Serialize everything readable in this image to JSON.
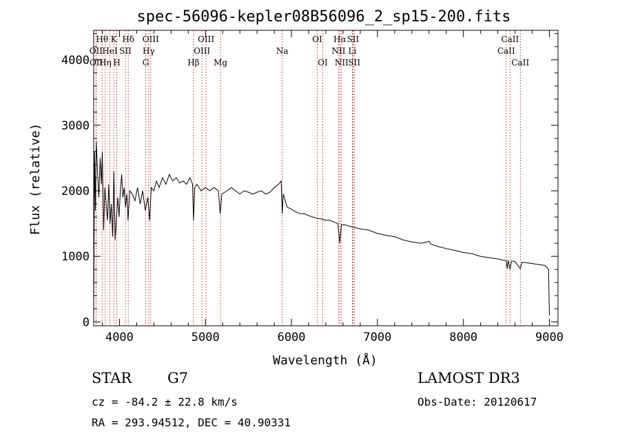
{
  "chart_data": {
    "type": "line",
    "title": "spec-56096-kepler08B56096_2_sp15-200.fits",
    "xlabel": "Wavelength (Å)",
    "ylabel": "Flux (relative)",
    "xlim": [
      3700,
      9100
    ],
    "ylim": [
      -60,
      4450
    ],
    "x_ticks": [
      4000,
      5000,
      6000,
      7000,
      8000,
      9000
    ],
    "x_tick_labels": [
      "4000",
      "5000",
      "6000",
      "7000",
      "8000",
      "9000"
    ],
    "y_ticks": [
      0,
      1000,
      2000,
      3000,
      4000
    ],
    "y_tick_labels": [
      "0",
      "1000",
      "2000",
      "3000",
      "4000"
    ],
    "grid": false,
    "series": [
      {
        "name": "spectrum",
        "points": [
          [
            3700,
            80
          ],
          [
            3710,
            2600
          ],
          [
            3720,
            1700
          ],
          [
            3730,
            2750
          ],
          [
            3745,
            2300
          ],
          [
            3760,
            1900
          ],
          [
            3775,
            2500
          ],
          [
            3790,
            2100
          ],
          [
            3800,
            2600
          ],
          [
            3815,
            1400
          ],
          [
            3830,
            2050
          ],
          [
            3845,
            1800
          ],
          [
            3860,
            1550
          ],
          [
            3875,
            2100
          ],
          [
            3890,
            1500
          ],
          [
            3905,
            1800
          ],
          [
            3920,
            1300
          ],
          [
            3935,
            2300
          ],
          [
            3950,
            1250
          ],
          [
            3965,
            1600
          ],
          [
            3980,
            1900
          ],
          [
            3995,
            1600
          ],
          [
            4010,
            2000
          ],
          [
            4025,
            2250
          ],
          [
            4040,
            1900
          ],
          [
            4055,
            2050
          ],
          [
            4070,
            1750
          ],
          [
            4085,
            1950
          ],
          [
            4100,
            1550
          ],
          [
            4120,
            2000
          ],
          [
            4150,
            1950
          ],
          [
            4180,
            1850
          ],
          [
            4210,
            2050
          ],
          [
            4240,
            1800
          ],
          [
            4270,
            2000
          ],
          [
            4300,
            1700
          ],
          [
            4330,
            1900
          ],
          [
            4350,
            1550
          ],
          [
            4370,
            2050
          ],
          [
            4400,
            2000
          ],
          [
            4430,
            2150
          ],
          [
            4460,
            2050
          ],
          [
            4500,
            2200
          ],
          [
            4540,
            2100
          ],
          [
            4580,
            2250
          ],
          [
            4620,
            2150
          ],
          [
            4660,
            2200
          ],
          [
            4700,
            2120
          ],
          [
            4740,
            2150
          ],
          [
            4780,
            2100
          ],
          [
            4820,
            2200
          ],
          [
            4850,
            2100
          ],
          [
            4861,
            1550
          ],
          [
            4875,
            2050
          ],
          [
            4900,
            2100
          ],
          [
            4950,
            2000
          ],
          [
            5000,
            2050
          ],
          [
            5050,
            2000
          ],
          [
            5100,
            2050
          ],
          [
            5150,
            2000
          ],
          [
            5172,
            1650
          ],
          [
            5190,
            1950
          ],
          [
            5250,
            2000
          ],
          [
            5300,
            2050
          ],
          [
            5350,
            2000
          ],
          [
            5400,
            1950
          ],
          [
            5450,
            2000
          ],
          [
            5500,
            1980
          ],
          [
            5550,
            1950
          ],
          [
            5600,
            1980
          ],
          [
            5650,
            2000
          ],
          [
            5700,
            1950
          ],
          [
            5750,
            1980
          ],
          [
            5800,
            2050
          ],
          [
            5850,
            2100
          ],
          [
            5880,
            2150
          ],
          [
            5893,
            1650
          ],
          [
            5905,
            1950
          ],
          [
            5950,
            1750
          ],
          [
            6000,
            1720
          ],
          [
            6050,
            1680
          ],
          [
            6100,
            1650
          ],
          [
            6150,
            1650
          ],
          [
            6200,
            1620
          ],
          [
            6250,
            1600
          ],
          [
            6300,
            1580
          ],
          [
            6350,
            1570
          ],
          [
            6400,
            1550
          ],
          [
            6450,
            1550
          ],
          [
            6500,
            1520
          ],
          [
            6540,
            1500
          ],
          [
            6563,
            1200
          ],
          [
            6580,
            1480
          ],
          [
            6620,
            1480
          ],
          [
            6700,
            1450
          ],
          [
            6800,
            1420
          ],
          [
            6900,
            1400
          ],
          [
            7000,
            1350
          ],
          [
            7100,
            1320
          ],
          [
            7200,
            1300
          ],
          [
            7300,
            1250
          ],
          [
            7400,
            1220
          ],
          [
            7500,
            1200
          ],
          [
            7550,
            1210
          ],
          [
            7600,
            1230
          ],
          [
            7620,
            1190
          ],
          [
            7700,
            1150
          ],
          [
            7800,
            1120
          ],
          [
            7900,
            1090
          ],
          [
            8000,
            1060
          ],
          [
            8100,
            1040
          ],
          [
            8200,
            1000
          ],
          [
            8300,
            980
          ],
          [
            8400,
            960
          ],
          [
            8498,
            930
          ],
          [
            8510,
            810
          ],
          [
            8520,
            940
          ],
          [
            8542,
            800
          ],
          [
            8560,
            930
          ],
          [
            8600,
            920
          ],
          [
            8662,
            810
          ],
          [
            8680,
            910
          ],
          [
            8750,
            900
          ],
          [
            8800,
            890
          ],
          [
            8850,
            880
          ],
          [
            8900,
            870
          ],
          [
            8950,
            860
          ],
          [
            8990,
            800
          ],
          [
            9000,
            100
          ]
        ]
      }
    ],
    "lines": [
      {
        "name": "Hθ",
        "wavelength": 3798,
        "row": 0
      },
      {
        "name": "OII",
        "wavelength": 3727,
        "row": 1
      },
      {
        "name": "OII",
        "wavelength": 3729,
        "row": 2
      },
      {
        "name": "Hη",
        "wavelength": 3835,
        "row": 2
      },
      {
        "name": "K",
        "wavelength": 3934,
        "row": 0
      },
      {
        "name": "HeI",
        "wavelength": 3889,
        "row": 1
      },
      {
        "name": "H",
        "wavelength": 3969,
        "row": 2
      },
      {
        "name": "SII",
        "wavelength": 4069,
        "row": 1
      },
      {
        "name": "Hδ",
        "wavelength": 4102,
        "row": 0
      },
      {
        "name": "OIII",
        "wavelength": 4363,
        "row": 0
      },
      {
        "name": "Hγ",
        "wavelength": 4340,
        "row": 1
      },
      {
        "name": "G",
        "wavelength": 4305,
        "row": 2
      },
      {
        "name": "Hβ",
        "wavelength": 4861,
        "row": 2
      },
      {
        "name": "OIII",
        "wavelength": 4959,
        "row": 1
      },
      {
        "name": "OIII",
        "wavelength": 5007,
        "row": 0
      },
      {
        "name": "Mg",
        "wavelength": 5175,
        "row": 2
      },
      {
        "name": "Na",
        "wavelength": 5893,
        "row": 1
      },
      {
        "name": "OI",
        "wavelength": 6300,
        "row": 0
      },
      {
        "name": "OI",
        "wavelength": 6364,
        "row": 2
      },
      {
        "name": "Hα",
        "wavelength": 6563,
        "row": 0
      },
      {
        "name": "NII",
        "wavelength": 6548,
        "row": 1
      },
      {
        "name": "NII",
        "wavelength": 6583,
        "row": 2
      },
      {
        "name": "SII",
        "wavelength": 6716,
        "row": 0
      },
      {
        "name": "Li",
        "wavelength": 6708,
        "row": 1
      },
      {
        "name": "SII",
        "wavelength": 6731,
        "row": 2
      },
      {
        "name": "CaII",
        "wavelength": 8542,
        "row": 0
      },
      {
        "name": "CaII",
        "wavelength": 8498,
        "row": 1
      },
      {
        "name": "CaII",
        "wavelength": 8662,
        "row": 2
      }
    ]
  },
  "info": {
    "class": "STAR",
    "subclass": "G7",
    "survey": "LAMOST DR3",
    "cz": "cz = -84.2 ± 22.8 km/s",
    "obs_date": "Obs-Date: 20120617",
    "coords": "RA = 293.94512, DEC =  40.90331"
  },
  "colors": {
    "line_marker": "#cc3333",
    "spectrum": "#000000"
  }
}
